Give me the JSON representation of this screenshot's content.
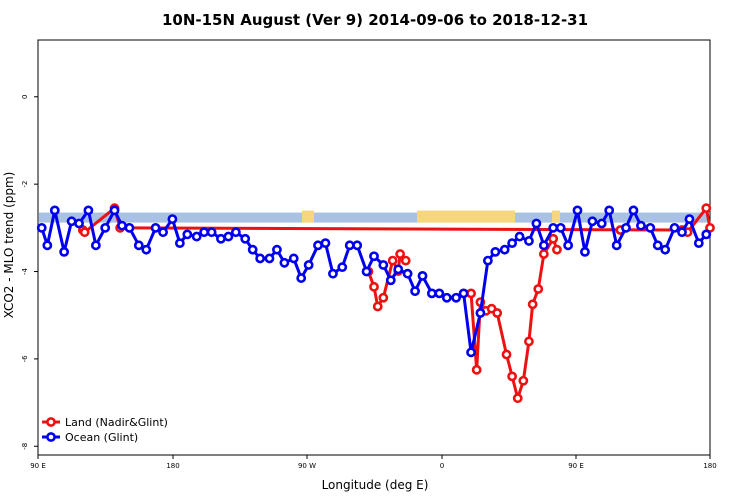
{
  "chart_data": {
    "type": "line",
    "title": "10N-15N August (Ver 9)   2014-09-06 to 2018-12-31",
    "xlabel": "Longitude (deg E)",
    "ylabel": "XCO2 - MLO trend (ppm)",
    "xlim": [
      90,
      450
    ],
    "ylim": [
      -8.2,
      1.3
    ],
    "x_ticks": [
      {
        "value": 90,
        "label": "90 E"
      },
      {
        "value": 180,
        "label": "180"
      },
      {
        "value": 270,
        "label": "90 W"
      },
      {
        "value": 360,
        "label": "0"
      },
      {
        "value": 450,
        "label": "90 E"
      },
      {
        "value": 540,
        "label": "180"
      }
    ],
    "y_ticks": [
      {
        "value": 0,
        "label": "0"
      },
      {
        "value": -2,
        "label": "-2"
      },
      {
        "value": -4,
        "label": "-4"
      },
      {
        "value": -6,
        "label": "-6"
      },
      {
        "value": -8,
        "label": "-8"
      }
    ],
    "land_band": {
      "y_top": -2.65,
      "y_bottom": -2.88,
      "ocean_color": "#a9c2e4",
      "land_color": "#f7d77e"
    },
    "legend": {
      "position": "bottom-left"
    },
    "series": [
      {
        "name": "Land (Nadir&Glint)",
        "color": "#ee1111",
        "x": [
          267,
          270,
          272,
          275,
          280,
          283,
          284,
          287
        ],
        "y": [
          -4.0,
          -4.35,
          -4.8,
          -4.6,
          -3.75,
          -3.99,
          -3.6,
          -3.75
        ]
      },
      {
        "name": "Land (Nadir&Glint)",
        "color": "#ee1111",
        "x": [
          322,
          325,
          327,
          330,
          333,
          336,
          341,
          344,
          347,
          350,
          353,
          355,
          358,
          361,
          366,
          368
        ],
        "y": [
          -4.5,
          -6.25,
          -4.7,
          -4.9,
          -4.85,
          -4.95,
          -5.9,
          -6.4,
          -6.9,
          -6.5,
          -5.6,
          -4.75,
          -4.4,
          -3.6,
          -3.25,
          -3.5
        ]
      },
      {
        "name": "Land (Nadir&Glint)",
        "color": "#ee1111",
        "x": [
          114,
          115,
          131,
          134,
          435,
          438,
          448,
          450
        ],
        "y": [
          -3.05,
          -3.1,
          -2.55,
          -3.0,
          -3.05,
          -3.1,
          -2.55,
          -3.0
        ]
      },
      {
        "name": "Land (Nadir&Glint)",
        "color": "#ee1111",
        "x": [
          402
        ],
        "y": [
          -3.05
        ]
      },
      {
        "name": "Ocean (Glint)",
        "color": "#0000ee",
        "x": [
          92,
          95,
          99,
          104,
          108,
          112,
          117,
          121,
          126,
          131,
          135,
          139,
          144,
          148,
          153,
          157,
          162,
          166,
          170,
          175,
          179,
          183,
          188,
          192,
          196,
          201,
          205,
          209,
          214,
          218,
          222,
          227,
          231,
          235,
          240,
          244,
          248,
          253,
          257,
          261,
          266,
          270,
          275,
          279,
          283,
          288,
          292,
          296,
          301,
          305,
          309,
          314,
          318,
          322,
          327,
          331,
          335,
          340,
          344,
          348,
          353,
          357,
          361,
          366,
          370,
          374,
          379,
          383,
          387,
          392,
          396,
          400,
          405,
          409,
          413,
          418,
          422,
          426,
          431,
          435,
          439,
          444,
          448
        ],
        "y": [
          -3.0,
          -3.4,
          -2.6,
          -3.55,
          -2.85,
          -2.9,
          -2.6,
          -3.4,
          -3.0,
          -2.6,
          -2.95,
          -3.0,
          -3.4,
          -3.5,
          -3.0,
          -3.1,
          -2.8,
          -3.35,
          -3.15,
          -3.2,
          -3.1,
          -3.1,
          -3.25,
          -3.2,
          -3.1,
          -3.25,
          -3.5,
          -3.7,
          -3.7,
          -3.5,
          -3.8,
          -3.7,
          -4.15,
          -3.85,
          -3.4,
          -3.35,
          -4.05,
          -3.9,
          -3.4,
          -3.4,
          -4.0,
          -3.65,
          -3.85,
          -4.2,
          -3.95,
          -4.05,
          -4.45,
          -4.1,
          -4.5,
          -4.5,
          -4.6,
          -4.6,
          -4.5,
          -5.85,
          -4.95,
          -3.75,
          -3.55,
          -3.5,
          -3.35,
          -3.2,
          -3.3,
          -2.9,
          -3.4,
          -3.0,
          -3.0,
          -3.4,
          -2.6,
          -3.55,
          -2.85,
          -2.9,
          -2.6,
          -3.4,
          -3.0,
          -2.6,
          -2.95,
          -3.0,
          -3.4,
          -3.5,
          -3.0,
          -3.1,
          -2.8,
          -3.35,
          -3.15
        ]
      }
    ]
  }
}
